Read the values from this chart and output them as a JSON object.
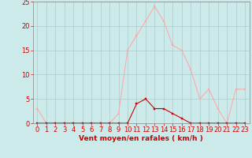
{
  "title": "",
  "xlabel": "Vent moyen/en rafales ( km/h )",
  "x_values": [
    0,
    1,
    2,
    3,
    4,
    5,
    6,
    7,
    8,
    9,
    10,
    11,
    12,
    13,
    14,
    15,
    16,
    17,
    18,
    19,
    20,
    21,
    22,
    23
  ],
  "rafales": [
    3,
    0,
    0,
    0,
    0,
    0,
    0,
    0,
    0,
    2,
    15,
    18,
    21,
    24,
    21,
    16,
    15,
    11,
    5,
    7,
    3,
    0,
    7,
    7
  ],
  "moyen": [
    0,
    0,
    0,
    0,
    0,
    0,
    0,
    0,
    0,
    0,
    0,
    4,
    5,
    3,
    3,
    2,
    1,
    0,
    0,
    0,
    0,
    0,
    0,
    0
  ],
  "rafales_color": "#ffaaaa",
  "moyen_color": "#cc0000",
  "bg_color": "#cceaea",
  "grid_color": "#aacccc",
  "axis_color": "#888888",
  "ylim": [
    0,
    25
  ],
  "yticks": [
    0,
    5,
    10,
    15,
    20,
    25
  ],
  "xlabel_color": "#cc0000",
  "tick_color": "#cc0000",
  "label_fontsize": 6.5,
  "tick_fontsize": 6.0
}
